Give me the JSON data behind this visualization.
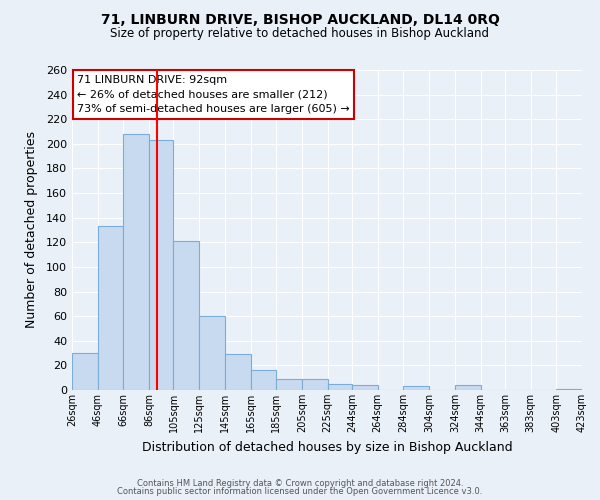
{
  "title": "71, LINBURN DRIVE, BISHOP AUCKLAND, DL14 0RQ",
  "subtitle": "Size of property relative to detached houses in Bishop Auckland",
  "xlabel": "Distribution of detached houses by size in Bishop Auckland",
  "ylabel": "Number of detached properties",
  "bin_labels": [
    "26sqm",
    "46sqm",
    "66sqm",
    "86sqm",
    "105sqm",
    "125sqm",
    "145sqm",
    "165sqm",
    "185sqm",
    "205sqm",
    "225sqm",
    "244sqm",
    "264sqm",
    "284sqm",
    "304sqm",
    "324sqm",
    "344sqm",
    "363sqm",
    "383sqm",
    "403sqm",
    "423sqm"
  ],
  "bar_heights": [
    30,
    133,
    208,
    203,
    121,
    60,
    29,
    16,
    9,
    9,
    5,
    4,
    0,
    3,
    0,
    4,
    0,
    0,
    0,
    1
  ],
  "bar_color": "#c8daf0",
  "bar_edge_color": "#7aaed6",
  "red_line_x": 92,
  "bin_edges": [
    26,
    46,
    66,
    86,
    105,
    125,
    145,
    165,
    185,
    205,
    225,
    244,
    264,
    284,
    304,
    324,
    344,
    363,
    383,
    403,
    423
  ],
  "ylim": [
    0,
    260
  ],
  "yticks": [
    0,
    20,
    40,
    60,
    80,
    100,
    120,
    140,
    160,
    180,
    200,
    220,
    240,
    260
  ],
  "annotation_text": "71 LINBURN DRIVE: 92sqm\n← 26% of detached houses are smaller (212)\n73% of semi-detached houses are larger (605) →",
  "annotation_box_color": "#ffffff",
  "annotation_box_edge": "#cc0000",
  "bg_color": "#eaf0f8",
  "footer1": "Contains HM Land Registry data © Crown copyright and database right 2024.",
  "footer2": "Contains public sector information licensed under the Open Government Licence v3.0."
}
